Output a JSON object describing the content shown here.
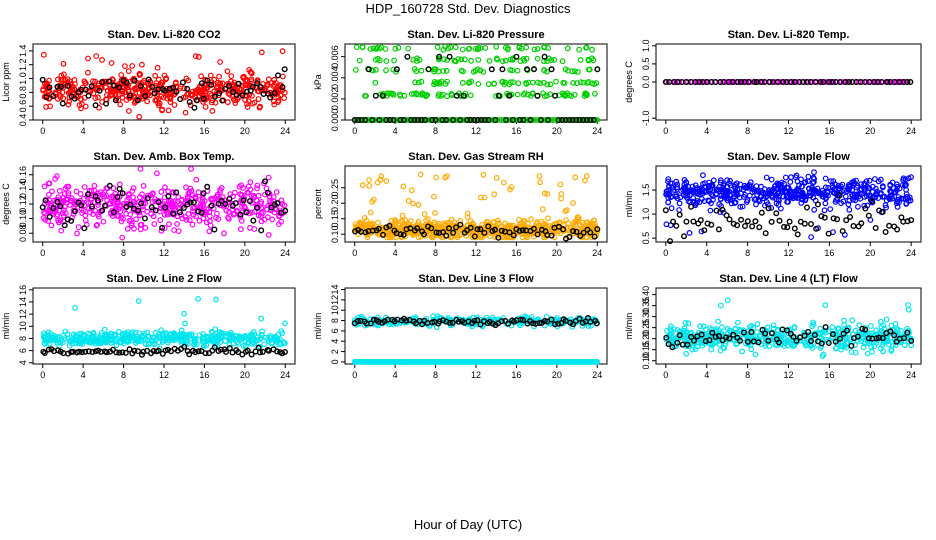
{
  "page": {
    "title": "HDP_160728  Std. Dev. Diagnostics",
    "xlabel": "Hour of Day (UTC)"
  },
  "chart_data": [
    {
      "type": "scatter",
      "title": "Stan. Dev. Li-820 CO2",
      "ylabel": "Licor ppm",
      "xlim": [
        0,
        24
      ],
      "ylim": [
        0.4,
        1.5
      ],
      "xticks": [
        0,
        4,
        8,
        12,
        16,
        20,
        24
      ],
      "yticks": [
        "0.4",
        "0.6",
        "0.8",
        "1.0",
        "1.2",
        "1.4"
      ],
      "yticks_val": [
        0.4,
        0.6,
        0.8,
        1.0,
        1.2,
        1.4
      ],
      "color": "#ff0000",
      "main": {
        "count": 480,
        "center": 0.82,
        "spread": 0.11,
        "hi": 1.42,
        "lo": 0.44,
        "outlier_hi": 0.05
      },
      "overlay": {
        "count": 70,
        "center": 0.82,
        "spread": 0.1
      }
    },
    {
      "type": "scatter",
      "title": "Stan. Dev. Li-820 Pressure",
      "ylabel": "kPa",
      "xlim": [
        0,
        24
      ],
      "ylim": [
        0,
        0.0072
      ],
      "xticks": [
        0,
        4,
        8,
        12,
        16,
        20,
        24
      ],
      "yticks": [
        "0.000",
        "0.002",
        "0.004",
        "0.006"
      ],
      "yticks_val": [
        0,
        0.002,
        0.004,
        0.006
      ],
      "color": "#00d000",
      "main": {
        "count": 260,
        "levels": [
          0.0035,
          0.0047,
          0.0057,
          0.0068,
          0.0024
        ],
        "zero_count": 130
      },
      "overlay": {
        "count": 70,
        "levels": [
          0,
          0,
          0,
          0,
          0,
          0,
          0.0048,
          0.006,
          0.0023
        ]
      }
    },
    {
      "type": "scatter",
      "title": "Stan. Dev. Li-820 Temp.",
      "ylabel": "degrees C",
      "xlim": [
        0,
        24
      ],
      "ylim": [
        -1.05,
        1.05
      ],
      "xticks": [
        0,
        4,
        8,
        12,
        16,
        20,
        24
      ],
      "yticks": [
        "-1.0",
        "0.0",
        "0.5",
        "1.0"
      ],
      "yticks_val": [
        -1.0,
        0.0,
        0.5,
        1.0
      ],
      "color": "#ff00ff",
      "main": {
        "count": 120,
        "center": 0,
        "spread": 0
      },
      "overlay": {
        "count": 60,
        "center": 0,
        "spread": 0
      }
    },
    {
      "type": "scatter",
      "title": "Stan. Dev. Amb. Box Temp.",
      "ylabel": "degrees C",
      "xlim": [
        0,
        24
      ],
      "ylim": [
        0.068,
        0.172
      ],
      "xticks": [
        0,
        4,
        8,
        12,
        16,
        20,
        24
      ],
      "yticks": [
        "0.08",
        "0.10",
        "0.12",
        "0.14",
        "0.16"
      ],
      "yticks_val": [
        0.08,
        0.1,
        0.12,
        0.14,
        0.16
      ],
      "color": "#ff00ff",
      "main": {
        "count": 480,
        "center": 0.118,
        "spread": 0.016,
        "hi": 0.168,
        "lo": 0.074
      },
      "overlay": {
        "count": 70,
        "center": 0.116,
        "spread": 0.012
      }
    },
    {
      "type": "scatter",
      "title": "Stan. Dev. Gas Stream RH",
      "ylabel": "percent",
      "xlim": [
        0,
        24
      ],
      "ylim": [
        0.075,
        0.32
      ],
      "xticks": [
        0,
        4,
        8,
        12,
        16,
        20,
        24
      ],
      "yticks": [
        "0.10",
        "0.15",
        "0.20",
        "0.25"
      ],
      "yticks_val": [
        0.1,
        0.15,
        0.2,
        0.25
      ],
      "color": "#ffaa00",
      "main": {
        "count": 620,
        "center": 0.115,
        "spread": 0.015,
        "hi": 0.3,
        "lo": 0.09,
        "outlier_hi": 0.1
      },
      "overlay": {
        "count": 70,
        "center": 0.11,
        "spread": 0.008
      }
    },
    {
      "type": "scatter",
      "title": "Stan. Dev. Sample Flow",
      "ylabel": "ml/min",
      "xlim": [
        0,
        24
      ],
      "ylim": [
        0.42,
        2.0
      ],
      "xticks": [
        0,
        4,
        8,
        12,
        16,
        20,
        24
      ],
      "yticks": [
        "0.5",
        "1.0",
        "1.5"
      ],
      "yticks_val": [
        0.5,
        1.0,
        1.5
      ],
      "color": "#0000ff",
      "main": {
        "count": 520,
        "center": 1.45,
        "spread": 0.15,
        "hi": 1.95,
        "lo": 0.5,
        "outlier_lo": 0.04
      },
      "overlay": {
        "count": 70,
        "center": 0.85,
        "spread": 0.17
      }
    },
    {
      "type": "scatter",
      "title": "Stan. Dev. Line 2 Flow",
      "ylabel": "ml/min",
      "xlim": [
        0,
        24
      ],
      "ylim": [
        3.8,
        16.3
      ],
      "xticks": [
        0,
        4,
        8,
        12,
        16,
        20,
        24
      ],
      "yticks": [
        "4",
        "6",
        "8",
        "10",
        "12",
        "14",
        "16"
      ],
      "yticks_val": [
        4,
        6,
        8,
        10,
        12,
        14,
        16
      ],
      "color": "#00e5ee",
      "main": {
        "count": 420,
        "center": 8.0,
        "spread": 0.6,
        "hi": 16,
        "lo": 5,
        "outlier_hi": 0.01
      },
      "overlay": {
        "count": 80,
        "center": 5.9,
        "spread": 0.25
      }
    },
    {
      "type": "scatter",
      "title": "Stan. Dev. Line 3 Flow",
      "ylabel": "ml/min",
      "xlim": [
        0,
        24
      ],
      "ylim": [
        -0.4,
        14.3
      ],
      "xticks": [
        0,
        4,
        8,
        12,
        16,
        20,
        24
      ],
      "yticks": [
        "0",
        "2",
        "4",
        "6",
        "8",
        "10",
        "12",
        "14"
      ],
      "yticks_val": [
        0,
        2,
        4,
        6,
        8,
        10,
        12,
        14
      ],
      "color": "#00e5ee",
      "main": {
        "count": 300,
        "center": 7.8,
        "spread": 0.4,
        "hi": 14,
        "lo": 3,
        "zero_count": 220
      },
      "overlay": {
        "count": 80,
        "center": 7.8,
        "spread": 0.3
      }
    },
    {
      "type": "scatter",
      "title": "Stan. Dev. Line 4 (LT) Flow",
      "ylabel": "ml/min",
      "xlim": [
        0,
        24
      ],
      "ylim": [
        0.085,
        0.43
      ],
      "xticks": [
        0,
        4,
        8,
        12,
        16,
        20,
        24
      ],
      "yticks": [
        "0.10",
        "0.15",
        "0.20",
        "0.25",
        "0.30",
        "0.35",
        "0.40"
      ],
      "yticks_val": [
        0.1,
        0.15,
        0.2,
        0.25,
        0.3,
        0.35,
        0.4
      ],
      "color": "#00e5ee",
      "main": {
        "count": 480,
        "center": 0.205,
        "spread": 0.03,
        "hi": 0.42,
        "lo": 0.1,
        "outlier_hi": 0.01
      },
      "overlay": {
        "count": 70,
        "center": 0.205,
        "spread": 0.02
      }
    }
  ]
}
